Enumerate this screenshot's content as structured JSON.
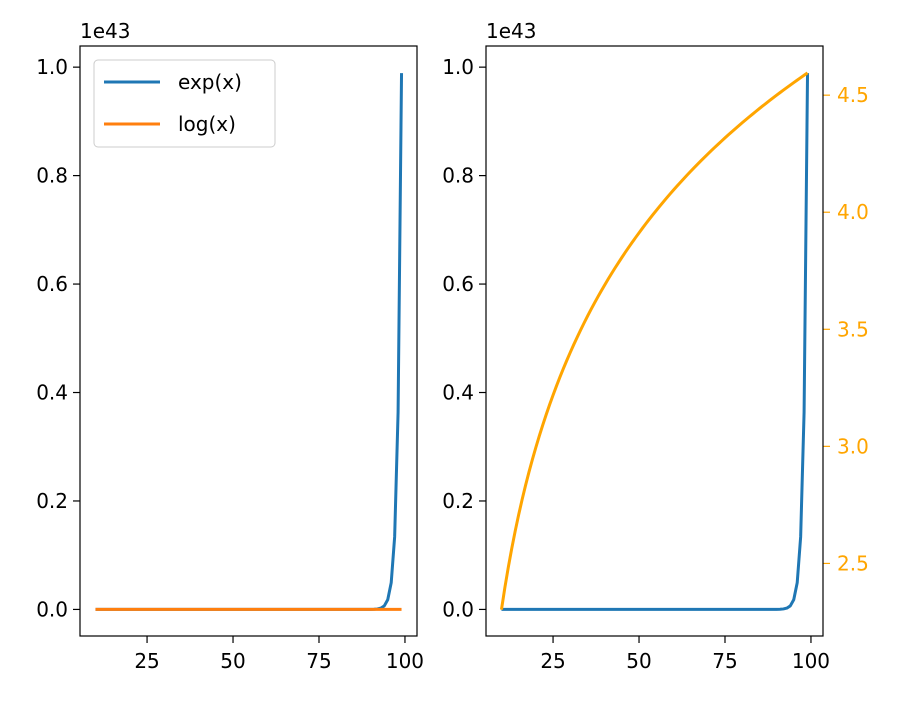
{
  "chart_data": [
    {
      "type": "line",
      "title": "",
      "xlabel": "",
      "ylabel": "",
      "offset_text": "1e43",
      "xlim": [
        5.5,
        103.5
      ],
      "ylim": [
        -0.049,
        1.039
      ],
      "x_ticks": [
        25,
        50,
        75,
        100
      ],
      "x_tick_labels": [
        "25",
        "50",
        "75",
        "100"
      ],
      "y_ticks": [
        0.0,
        0.2,
        0.4,
        0.6,
        0.8,
        1.0
      ],
      "y_tick_labels": [
        "0.0",
        "0.2",
        "0.4",
        "0.6",
        "0.8",
        "1.0"
      ],
      "legend_position": "top-left",
      "x": [
        10,
        99
      ],
      "series": [
        {
          "name": "exp(x)",
          "color": "#1f77b4",
          "function": "exp",
          "scale": 1e+43
        },
        {
          "name": "log(x)",
          "color": "#ff7f0e",
          "function": "log",
          "scale": 1e+43
        }
      ]
    },
    {
      "type": "line",
      "title": "",
      "xlabel": "",
      "ylabel": "",
      "offset_text": "1e43",
      "xlim": [
        5.5,
        103.5
      ],
      "ylim": [
        -0.049,
        1.039
      ],
      "x_ticks": [
        25,
        50,
        75,
        100
      ],
      "x_tick_labels": [
        "25",
        "50",
        "75",
        "100"
      ],
      "y_ticks": [
        0.0,
        0.2,
        0.4,
        0.6,
        0.8,
        1.0
      ],
      "y_tick_labels": [
        "0.0",
        "0.2",
        "0.4",
        "0.6",
        "0.8",
        "1.0"
      ],
      "y2lim": [
        2.19,
        4.71
      ],
      "y2_ticks": [
        2.5,
        3.0,
        3.5,
        4.0,
        4.5
      ],
      "y2_tick_labels": [
        "2.5",
        "3.0",
        "3.5",
        "4.0",
        "4.5"
      ],
      "y2_color": "#ffa500",
      "x": [
        10,
        99
      ],
      "series": [
        {
          "color": "#1f77b4",
          "function": "exp",
          "scale": 1e+43,
          "axis": "left"
        },
        {
          "color": "#ffa500",
          "function": "log",
          "scale": 1,
          "axis": "right"
        }
      ]
    }
  ]
}
